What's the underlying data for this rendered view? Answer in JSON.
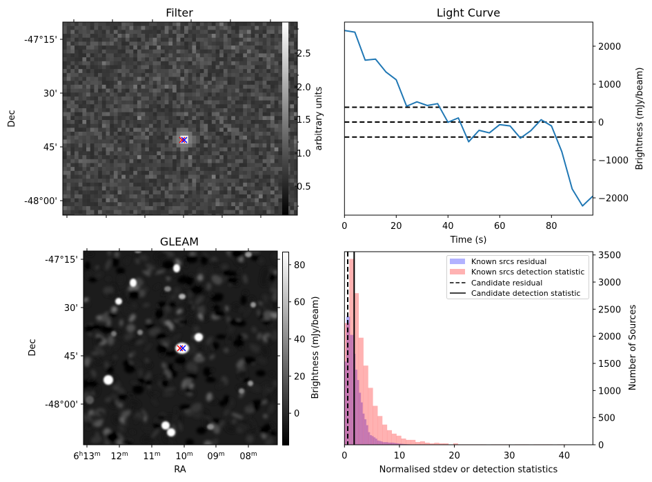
{
  "figure": {
    "panels": [
      "Filter",
      "Light Curve",
      "GLEAM",
      "Histogram"
    ]
  },
  "filter_panel": {
    "title": "Filter",
    "ylabel": "Dec",
    "yticks": [
      "-47°15'",
      "30'",
      "45'",
      "-48°00'"
    ],
    "colorbar": {
      "label": "arbitrary units",
      "ticks": [
        "0.5",
        "1.0",
        "1.5",
        "2.0",
        "2.5"
      ],
      "range": [
        0.15,
        2.9
      ]
    },
    "markers": [
      {
        "symbol": "x",
        "color": "#ff0000"
      },
      {
        "symbol": "x",
        "color": "#0000ff"
      }
    ]
  },
  "gleam_panel": {
    "title": "GLEAM",
    "ylabel": "Dec",
    "xlabel": "RA",
    "yticks": [
      "-47°15'",
      "30'",
      "45'",
      "-48°00'"
    ],
    "xticks": [
      {
        "major": "6",
        "major_unit": "h",
        "minor": "13",
        "minor_unit": "m"
      },
      {
        "major": "",
        "major_unit": "",
        "minor": "12",
        "minor_unit": "m"
      },
      {
        "major": "",
        "major_unit": "",
        "minor": "11",
        "minor_unit": "m"
      },
      {
        "major": "",
        "major_unit": "",
        "minor": "10",
        "minor_unit": "m"
      },
      {
        "major": "",
        "major_unit": "",
        "minor": "09",
        "minor_unit": "m"
      },
      {
        "major": "",
        "major_unit": "",
        "minor": "08",
        "minor_unit": "m"
      }
    ],
    "colorbar": {
      "label": "Brightness (mJy/beam)",
      "ticks": [
        "0",
        "20",
        "40",
        "60",
        "80"
      ],
      "range": [
        -17,
        87
      ]
    },
    "markers": [
      {
        "symbol": "x",
        "color": "#ff0000"
      },
      {
        "symbol": "x",
        "color": "#0000ff"
      }
    ]
  },
  "chart_data": [
    {
      "type": "line",
      "title": "Light Curve",
      "xlabel": "Time (s)",
      "ylabel": "Brightness (mJy/beam)",
      "xlim": [
        0,
        96
      ],
      "ylim": [
        -2455,
        2636
      ],
      "xticks": [
        0,
        20,
        40,
        60,
        80
      ],
      "yticks": [
        -2000,
        -1000,
        0,
        1000,
        2000
      ],
      "ytick_labels": [
        "−2000",
        "−1000",
        "0",
        "1000",
        "2000"
      ],
      "grid": false,
      "series": [
        {
          "name": "light curve",
          "color": "#1f77b4",
          "x": [
            0,
            4,
            8,
            12,
            16,
            20,
            24,
            28,
            32,
            36,
            40,
            44,
            48,
            52,
            56,
            60,
            64,
            68,
            72,
            76,
            80,
            84,
            88,
            92,
            96
          ],
          "y": [
            2412,
            2370,
            1630,
            1660,
            1321,
            1115,
            418,
            533,
            436,
            485,
            -6,
            109,
            -521,
            -218,
            -285,
            -67,
            -103,
            -424,
            -230,
            61,
            -103,
            -782,
            -1764,
            -2212,
            -1952
          ]
        }
      ],
      "hlines": [
        {
          "y": 390,
          "style": "dashed",
          "color": "#000000"
        },
        {
          "y": 0,
          "style": "dashed",
          "color": "#000000"
        },
        {
          "y": -395,
          "style": "dashed",
          "color": "#000000"
        }
      ]
    },
    {
      "type": "bar",
      "subtype": "histogram",
      "xlabel": "Normalised stdev or detection statistics",
      "ylabel": "Number of Sources",
      "xlim": [
        0,
        45.2
      ],
      "ylim": [
        0,
        3560
      ],
      "xticks": [
        0,
        10,
        20,
        30,
        40
      ],
      "yticks": [
        0,
        500,
        1000,
        1500,
        2000,
        2500,
        3000,
        3500
      ],
      "grid": false,
      "legend_position": "top-right",
      "series": [
        {
          "name": "Known srcs residual",
          "color": "#0000ff",
          "alpha": 0.3,
          "bin_start": 0.0,
          "bin_width": 0.33,
          "counts": [
            1535,
            2363,
            2363,
            2026,
            2026,
            1677,
            1385,
            1194,
            960,
            781,
            575,
            470,
            361,
            233,
            177,
            161,
            137,
            113,
            79,
            71,
            62,
            48,
            48,
            48,
            40,
            40,
            40,
            35,
            30,
            25,
            20,
            18,
            15,
            12,
            10,
            8,
            6,
            5,
            4,
            3
          ]
        },
        {
          "name": "Known srcs detection statistic",
          "color": "#ff0000",
          "alpha": 0.3,
          "bin_start": 0.0,
          "bin_width": 0.86,
          "counts": [
            2244,
            3427,
            2795,
            1974,
            1460,
            1050,
            718,
            530,
            372,
            269,
            205,
            167,
            115,
            90,
            90,
            51,
            64,
            38,
            26,
            37,
            26,
            26,
            4,
            26,
            8,
            8,
            8,
            8,
            8,
            8,
            4,
            8,
            8,
            8,
            8,
            4,
            8,
            8,
            8,
            4,
            8,
            8,
            8,
            8,
            4,
            8,
            8,
            4,
            0,
            4
          ]
        }
      ],
      "vlines": [
        {
          "name": "Candidate residual",
          "x": 0.59,
          "style": "dashed",
          "color": "#000000"
        },
        {
          "name": "Candidate detection statistic",
          "x": 1.76,
          "style": "solid",
          "color": "#000000"
        }
      ],
      "legend": [
        {
          "label": "Known srcs residual",
          "kind": "patch",
          "color": "#b2b2ff"
        },
        {
          "label": "Known srcs detection statistic",
          "kind": "patch",
          "color": "#ffb2b2"
        },
        {
          "label": "Candidate residual",
          "kind": "dashed-line",
          "color": "#000000"
        },
        {
          "label": "Candidate detection statistic",
          "kind": "solid-line",
          "color": "#000000"
        }
      ]
    }
  ]
}
